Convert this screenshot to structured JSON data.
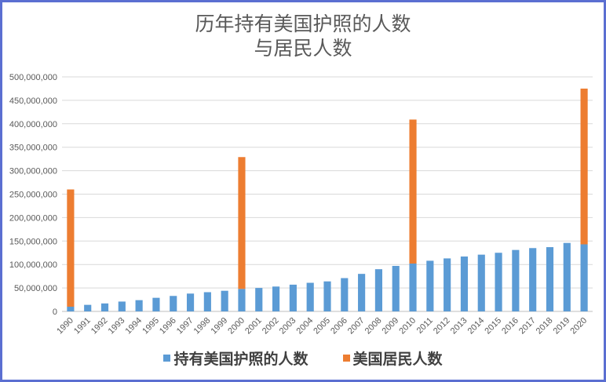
{
  "chart_data": {
    "type": "bar",
    "title_lines": [
      "历年持有美国护照的人数",
      "与居民人数"
    ],
    "categories": [
      "1990",
      "1991",
      "1992",
      "1993",
      "1994",
      "1995",
      "1996",
      "1997",
      "1998",
      "1999",
      "2000",
      "2001",
      "2002",
      "2003",
      "2004",
      "2005",
      "2006",
      "2007",
      "2008",
      "2009",
      "2010",
      "2011",
      "2012",
      "2013",
      "2014",
      "2015",
      "2016",
      "2017",
      "2018",
      "2019",
      "2020"
    ],
    "series": [
      {
        "name": "持有美国护照的人数",
        "color": "#5b9bd5",
        "values": [
          10000000,
          14000000,
          17000000,
          21000000,
          24000000,
          29000000,
          33000000,
          38000000,
          41000000,
          44000000,
          48000000,
          50000000,
          53000000,
          57000000,
          61000000,
          64000000,
          71000000,
          80000000,
          90000000,
          97000000,
          102000000,
          108000000,
          113000000,
          117000000,
          121000000,
          125000000,
          131000000,
          135000000,
          137000000,
          146000000,
          143000000
        ]
      },
      {
        "name": "美国居民人数",
        "color": "#ed7d31",
        "values": [
          250000000,
          null,
          null,
          null,
          null,
          null,
          null,
          null,
          null,
          null,
          281000000,
          null,
          null,
          null,
          null,
          null,
          null,
          null,
          null,
          null,
          307000000,
          null,
          null,
          null,
          null,
          null,
          null,
          null,
          null,
          null,
          332000000
        ]
      }
    ],
    "stacked": true,
    "ylim": [
      0,
      500000000
    ],
    "yticks": [
      "0",
      "50,000,000",
      "100,000,000",
      "150,000,000",
      "200,000,000",
      "250,000,000",
      "300,000,000",
      "350,000,000",
      "400,000,000",
      "450,000,000",
      "500,000,000"
    ],
    "grid": true,
    "legend_position": "bottom"
  }
}
